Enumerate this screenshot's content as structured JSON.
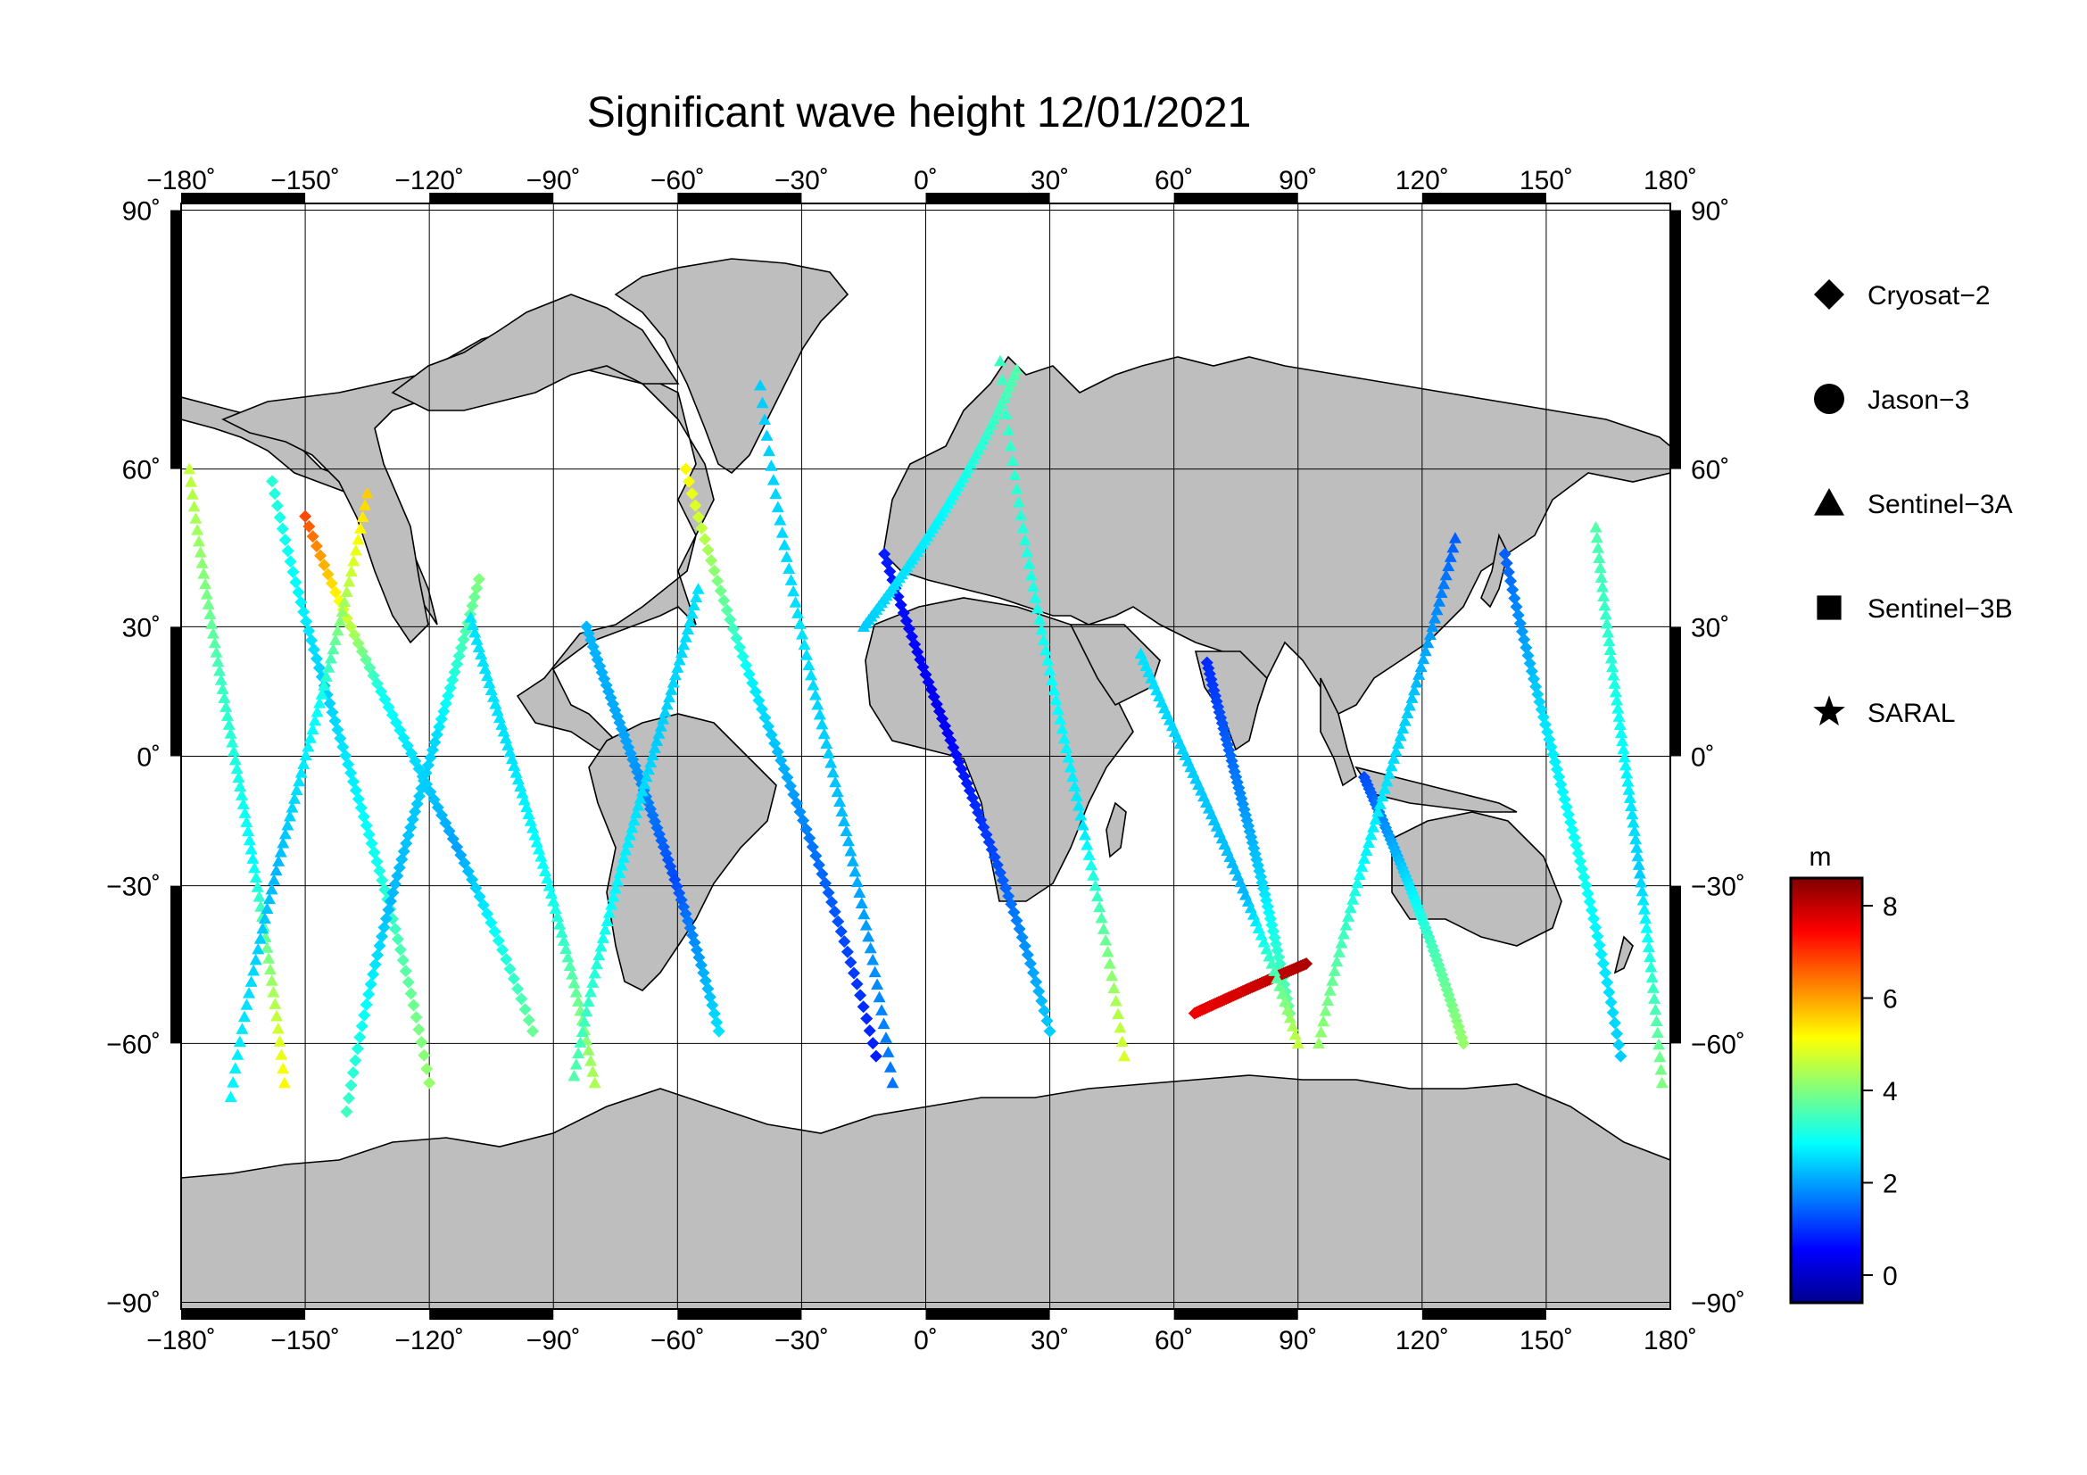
{
  "title": "Significant wave height 12/01/2021",
  "map": {
    "lon_ticks": [
      "−180˚",
      "−150˚",
      "−120˚",
      "−90˚",
      "−60˚",
      "−30˚",
      "0˚",
      "30˚",
      "60˚",
      "90˚",
      "120˚",
      "150˚",
      "180˚"
    ],
    "lat_ticks": [
      "90˚",
      "60˚",
      "30˚",
      "0˚",
      "−30˚",
      "−60˚",
      "−90˚"
    ],
    "lon_range": [
      -180,
      180
    ],
    "lat_range": [
      -90,
      90
    ],
    "projection": "Miller cylindrical",
    "land_color": "#bebebe",
    "ocean_color": "#ffffff",
    "grid": true
  },
  "legend": {
    "items": [
      {
        "label": "Cryosat−2",
        "marker": "diamond"
      },
      {
        "label": "Jason−3",
        "marker": "circle"
      },
      {
        "label": "Sentinel−3A",
        "marker": "triangle"
      },
      {
        "label": "Sentinel−3B",
        "marker": "square"
      },
      {
        "label": "SARAL",
        "marker": "star"
      }
    ]
  },
  "colorbar": {
    "unit": "m",
    "ticks": [
      "8",
      "6",
      "4",
      "2",
      "0"
    ],
    "range": [
      -0.6,
      8.6
    ],
    "colormap": "jet"
  },
  "chart_data": {
    "type": "scatter",
    "title": "Significant wave height 12/01/2021",
    "xlim": [
      -180,
      180
    ],
    "ylim": [
      -90,
      90
    ],
    "series": [
      {
        "name": "Cryosat−2",
        "marker": "diamond",
        "tracks": [
          {
            "lon": [
              -158,
              -120
            ],
            "lat": [
              58,
              -66
            ],
            "swh": [
              3.2,
              2.4,
              3.0,
              4.2
            ]
          },
          {
            "lon": [
              -108,
              -140
            ],
            "lat": [
              40,
              -70
            ],
            "swh": [
              4.0,
              2.5,
              2.2,
              3.4
            ]
          },
          {
            "lon": [
              -150,
              -95
            ],
            "lat": [
              52,
              -58
            ],
            "swh": [
              6.8,
              3.0,
              2.0,
              3.8
            ]
          },
          {
            "lon": [
              -82,
              -50
            ],
            "lat": [
              30,
              -58
            ],
            "swh": [
              2.2,
              2.0,
              1.2,
              2.6
            ]
          },
          {
            "lon": [
              -58,
              -12
            ],
            "lat": [
              60,
              -62
            ],
            "swh": [
              5.2,
              2.8,
              1.6,
              0.8
            ]
          },
          {
            "lon": [
              -10,
              30
            ],
            "lat": [
              45,
              -58
            ],
            "swh": [
              0.8,
              0.4,
              1.2,
              2.4
            ]
          },
          {
            "lon": [
              68,
              88
            ],
            "lat": [
              22,
              -55
            ],
            "swh": [
              0.9,
              1.6,
              2.5,
              3.8
            ]
          },
          {
            "lon": [
              92,
              65
            ],
            "lat": [
              -46,
              -55
            ],
            "swh": [
              8.2,
              7.6
            ]
          },
          {
            "lon": [
              106,
              130
            ],
            "lat": [
              -5,
              -60
            ],
            "swh": [
              1.2,
              2.2,
              3.4,
              4.2
            ]
          },
          {
            "lon": [
              140,
              168
            ],
            "lat": [
              45,
              -62
            ],
            "swh": [
              1.4,
              2.6,
              3.0,
              2.4
            ]
          }
        ]
      },
      {
        "name": "Sentinel−3A",
        "marker": "triangle",
        "tracks": [
          {
            "lon": [
              -178,
              -155
            ],
            "lat": [
              60,
              -66
            ],
            "swh": [
              4.6,
              3.4,
              2.8,
              5.2
            ]
          },
          {
            "lon": [
              -135,
              -168
            ],
            "lat": [
              56,
              -68
            ],
            "swh": [
              5.6,
              3.0,
              2.2,
              2.8
            ]
          },
          {
            "lon": [
              -110,
              -80
            ],
            "lat": [
              32,
              -66
            ],
            "swh": [
              2.6,
              2.6,
              3.0,
              4.4
            ]
          },
          {
            "lon": [
              -55,
              -85
            ],
            "lat": [
              38,
              -65
            ],
            "swh": [
              2.6,
              2.4,
              2.8,
              3.6
            ]
          },
          {
            "lon": [
              -40,
              -8
            ],
            "lat": [
              72,
              -66
            ],
            "swh": [
              2.4,
              2.6,
              2.2,
              1.6
            ]
          },
          {
            "lon": [
              18,
              48
            ],
            "lat": [
              75,
              -62
            ],
            "swh": [
              3.4,
              3.0,
              2.6,
              4.8
            ]
          },
          {
            "lon": [
              22,
              -15
            ],
            "lat": [
              74,
              30
            ],
            "swh": [
              3.6,
              2.8,
              2.4
            ]
          },
          {
            "lon": [
              52,
              90
            ],
            "lat": [
              24,
              -60
            ],
            "swh": [
              2.6,
              2.4,
              2.2,
              4.6
            ]
          },
          {
            "lon": [
              128,
              95
            ],
            "lat": [
              48,
              -60
            ],
            "swh": [
              1.4,
              2.4,
              2.8,
              4.2
            ]
          },
          {
            "lon": [
              162,
              178
            ],
            "lat": [
              50,
              -66
            ],
            "swh": [
              3.6,
              3.0,
              2.4,
              4.0
            ]
          }
        ]
      }
    ]
  }
}
